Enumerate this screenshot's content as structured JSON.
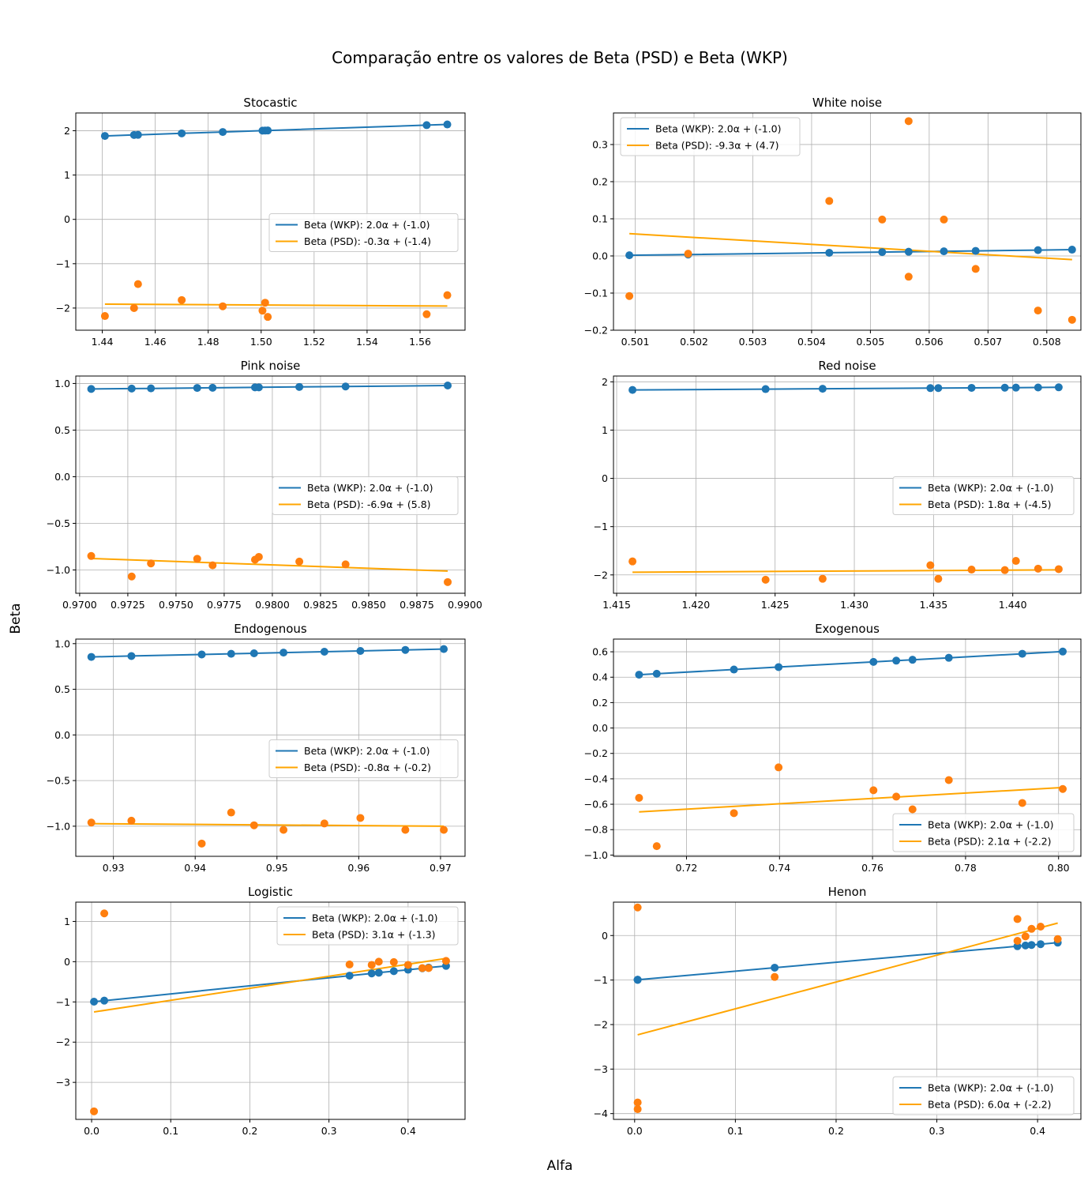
{
  "figure": {
    "title": "Comparação entre os valores de Beta (PSD) e Beta (WKP)",
    "xlabel": "Alfa",
    "ylabel": "Beta",
    "colors": {
      "wkp": "#1f77b4",
      "psd_points": "#ff7f0e",
      "psd_line": "#ffa500",
      "grid": "#b0b0b0"
    }
  },
  "chart_data": [
    {
      "type": "scatter",
      "title": "Stocastic",
      "xlim": [
        1.43,
        1.577
      ],
      "ylim": [
        -2.5,
        2.4
      ],
      "xticks": [
        1.44,
        1.46,
        1.48,
        1.5,
        1.52,
        1.54,
        1.56
      ],
      "xtick_labels": [
        "1.44",
        "1.46",
        "1.48",
        "1.50",
        "1.52",
        "1.54",
        "1.56"
      ],
      "yticks": [
        -2,
        -1,
        0,
        1,
        2
      ],
      "ytick_labels": [
        "−2",
        "−1",
        "0",
        "1",
        "2"
      ],
      "legend": "center-right",
      "legend_entries": [
        "Beta (WKP): 2.0α + (-1.0)",
        "Beta (PSD):  -0.3α + (-1.4)"
      ],
      "x": [
        1.441,
        1.452,
        1.4535,
        1.47,
        1.4855,
        1.5005,
        1.5015,
        1.5025,
        1.5625,
        1.5703
      ],
      "wkp": [
        1.882,
        1.904,
        1.907,
        1.94,
        1.971,
        2.001,
        2.003,
        2.005,
        2.125,
        2.141
      ],
      "psd": [
        -2.18,
        -2.0,
        -1.46,
        -1.82,
        -1.96,
        -2.06,
        -1.88,
        -2.2,
        -2.14,
        -1.71
      ],
      "psd_fit": [
        -0.3,
        -1.4
      ]
    },
    {
      "type": "scatter",
      "title": "White noise",
      "xlim": [
        0.50063,
        0.50858
      ],
      "ylim": [
        -0.2,
        0.385
      ],
      "xticks": [
        0.501,
        0.502,
        0.503,
        0.504,
        0.505,
        0.506,
        0.507,
        0.508
      ],
      "xtick_labels": [
        "0.501",
        "0.502",
        "0.503",
        "0.504",
        "0.505",
        "0.506",
        "0.507",
        "0.508"
      ],
      "yticks": [
        -0.2,
        -0.1,
        0.0,
        0.1,
        0.2,
        0.3
      ],
      "ytick_labels": [
        "−0.2",
        "−0.1",
        "0.0",
        "0.1",
        "0.2",
        "0.3"
      ],
      "legend": "upper-left",
      "legend_entries": [
        "Beta (WKP): 2.0α + (-1.0)",
        "Beta (PSD):  -9.3α + (4.7)"
      ],
      "x": [
        0.5009,
        0.5019,
        0.5043,
        0.5052,
        0.50565,
        0.50625,
        0.50679,
        0.50785,
        0.50843
      ],
      "wkp": [
        0.0018,
        0.0038,
        0.0086,
        0.0104,
        0.0113,
        0.0125,
        0.0136,
        0.0157,
        0.0169
      ],
      "psd": [
        -0.108,
        0.006,
        0.148,
        0.098,
        -0.056,
        0.098,
        -0.035,
        -0.147,
        -0.172
      ],
      "psd_extra": [
        [
          0.50565,
          0.363
        ]
      ],
      "psd_fit": [
        -9.3,
        4.7
      ],
      "psd_fit_line": [
        [
          0.5009,
          0.06
        ],
        [
          0.50843,
          -0.01
        ]
      ]
    },
    {
      "type": "scatter",
      "title": "Pink noise",
      "xlim": [
        0.9698,
        0.99
      ],
      "ylim": [
        -1.25,
        1.08
      ],
      "xticks": [
        0.97,
        0.9725,
        0.975,
        0.9775,
        0.98,
        0.9825,
        0.985,
        0.9875,
        0.99
      ],
      "xtick_labels": [
        "0.9700",
        "0.9725",
        "0.9750",
        "0.9775",
        "0.9800",
        "0.9825",
        "0.9850",
        "0.9875",
        "0.9900"
      ],
      "yticks": [
        -1.0,
        -0.5,
        0.0,
        0.5,
        1.0
      ],
      "ytick_labels": [
        "−1.0",
        "−0.5",
        "0.0",
        "0.5",
        "1.0"
      ],
      "legend": "center-right",
      "legend_entries": [
        "Beta (WKP): 2.0α + (-1.0)",
        "Beta (PSD):  -6.9α + (5.8)"
      ],
      "x": [
        0.9706,
        0.9727,
        0.9737,
        0.9761,
        0.9769,
        0.9791,
        0.9793,
        0.9814,
        0.9838,
        0.9891
      ],
      "wkp": [
        0.9412,
        0.9454,
        0.9474,
        0.9522,
        0.9538,
        0.9582,
        0.9586,
        0.9628,
        0.9676,
        0.9782
      ],
      "psd": [
        -0.85,
        -1.07,
        -0.93,
        -0.88,
        -0.95,
        -0.89,
        -0.86,
        -0.91,
        -0.94,
        -1.13
      ],
      "psd_fit": [
        -6.9,
        5.8
      ],
      "psd_fit_line": [
        [
          0.9706,
          -0.877
        ],
        [
          0.9891,
          -1.012
        ]
      ]
    },
    {
      "type": "scatter",
      "title": "Red noise",
      "xlim": [
        1.4148,
        1.4443
      ],
      "ylim": [
        -2.38,
        2.12
      ],
      "xticks": [
        1.415,
        1.42,
        1.425,
        1.43,
        1.435,
        1.44
      ],
      "xtick_labels": [
        "1.415",
        "1.420",
        "1.425",
        "1.430",
        "1.435",
        "1.440"
      ],
      "yticks": [
        -2,
        -1,
        0,
        1,
        2
      ],
      "ytick_labels": [
        "−2",
        "−1",
        "0",
        "1",
        "2"
      ],
      "legend": "center-right",
      "legend_entries": [
        "Beta (WKP): 2.0α + (-1.0)",
        "Beta (PSD):  1.8α + (-4.5)"
      ],
      "x": [
        1.416,
        1.4244,
        1.428,
        1.4348,
        1.4353,
        1.4374,
        1.4395,
        1.4402,
        1.4416,
        1.4429
      ],
      "wkp": [
        1.832,
        1.849,
        1.856,
        1.87,
        1.871,
        1.875,
        1.879,
        1.88,
        1.883,
        1.886
      ],
      "psd": [
        -1.72,
        -2.1,
        -2.08,
        -1.8,
        -2.08,
        -1.89,
        -1.9,
        -1.71,
        -1.87,
        -1.88
      ],
      "psd_fit": [
        1.8,
        -4.5
      ],
      "psd_fit_line": [
        [
          1.416,
          -1.944
        ],
        [
          1.4429,
          -1.895
        ]
      ]
    },
    {
      "type": "scatter",
      "title": "Endogenous",
      "xlim": [
        0.9254,
        0.973
      ],
      "ylim": [
        -1.33,
        1.05
      ],
      "xticks": [
        0.93,
        0.94,
        0.95,
        0.96,
        0.97
      ],
      "xtick_labels": [
        "0.93",
        "0.94",
        "0.95",
        "0.96",
        "0.97"
      ],
      "yticks": [
        -1.0,
        -0.5,
        0.0,
        0.5,
        1.0
      ],
      "ytick_labels": [
        "−1.0",
        "−0.5",
        "0.0",
        "0.5",
        "1.0"
      ],
      "legend": "center-right",
      "legend_entries": [
        "Beta (WKP): 2.0α + (-1.0)",
        "Beta (PSD):  -0.8α + (-0.2)"
      ],
      "x": [
        0.9273,
        0.9322,
        0.9408,
        0.9444,
        0.9472,
        0.9508,
        0.9558,
        0.9602,
        0.9657,
        0.9704
      ],
      "wkp": [
        0.8546,
        0.8644,
        0.8816,
        0.8888,
        0.8944,
        0.9016,
        0.9116,
        0.9204,
        0.9314,
        0.9408
      ],
      "psd": [
        -0.96,
        -0.94,
        -1.19,
        -0.85,
        -0.99,
        -1.04,
        -0.97,
        -0.91,
        -1.04,
        -1.04
      ],
      "psd_fit": [
        -0.8,
        -0.2
      ],
      "psd_fit_line": [
        [
          0.9273,
          -0.972
        ],
        [
          0.9704,
          -1.0
        ]
      ]
    },
    {
      "type": "scatter",
      "title": "Exogenous",
      "xlim": [
        0.7043,
        0.8048
      ],
      "ylim": [
        -1.01,
        0.7
      ],
      "xticks": [
        0.72,
        0.74,
        0.76,
        0.78,
        0.8
      ],
      "xtick_labels": [
        "0.72",
        "0.74",
        "0.76",
        "0.78",
        "0.80"
      ],
      "yticks": [
        -1.0,
        -0.8,
        -0.6,
        -0.4,
        -0.2,
        0.0,
        0.2,
        0.4,
        0.6
      ],
      "ytick_labels": [
        "−1.0",
        "−0.8",
        "−0.6",
        "−0.4",
        "−0.2",
        "0.0",
        "0.2",
        "0.4",
        "0.6"
      ],
      "legend": "lower-right",
      "legend_entries": [
        "Beta (WKP): 2.0α + (-1.0)",
        "Beta (PSD):  2.1α + (-2.2)"
      ],
      "x": [
        0.7098,
        0.7136,
        0.7302,
        0.7398,
        0.7602,
        0.7651,
        0.7686,
        0.7764,
        0.7922,
        0.8009
      ],
      "wkp": [
        0.4196,
        0.4272,
        0.4604,
        0.4796,
        0.5204,
        0.5302,
        0.5372,
        0.5528,
        0.5844,
        0.6018
      ],
      "psd": [
        -0.55,
        -0.93,
        -0.67,
        -0.31,
        -0.49,
        -0.54,
        -0.64,
        -0.41,
        -0.59,
        -0.48
      ],
      "psd_fit": [
        2.1,
        -2.2
      ],
      "psd_fit_line": [
        [
          0.7098,
          -0.66
        ],
        [
          0.8009,
          -0.468
        ]
      ]
    },
    {
      "type": "scatter",
      "title": "Logistic",
      "xlim": [
        -0.02,
        0.472
      ],
      "ylim": [
        -3.92,
        1.48
      ],
      "xticks": [
        0.0,
        0.1,
        0.2,
        0.3,
        0.4
      ],
      "xtick_labels": [
        "0.0",
        "0.1",
        "0.2",
        "0.3",
        "0.4"
      ],
      "yticks": [
        -3,
        -2,
        -1,
        0,
        1
      ],
      "ytick_labels": [
        "−3",
        "−2",
        "−1",
        "0",
        "1"
      ],
      "legend": "upper-right",
      "legend_entries": [
        "Beta (WKP): 2.0α + (-1.0)",
        "Beta (PSD):  3.1α + (-1.3)"
      ],
      "x": [
        0.003,
        0.016,
        0.326,
        0.354,
        0.363,
        0.382,
        0.4,
        0.418,
        0.426,
        0.448
      ],
      "wkp": [
        -0.994,
        -0.968,
        -0.348,
        -0.292,
        -0.274,
        -0.236,
        -0.2,
        -0.164,
        -0.148,
        -0.104
      ],
      "psd": [
        -3.72,
        1.2,
        -0.07,
        -0.08,
        0.0,
        -0.01,
        -0.08,
        -0.16,
        -0.16,
        0.02
      ],
      "psd_fit": [
        3.1,
        -1.3
      ],
      "psd_fit_line": [
        [
          0.003,
          -1.25
        ],
        [
          0.448,
          0.08
        ]
      ]
    },
    {
      "type": "scatter",
      "title": "Henon",
      "xlim": [
        -0.021,
        0.443
      ],
      "ylim": [
        -4.13,
        0.75
      ],
      "xticks": [
        0.0,
        0.1,
        0.2,
        0.3,
        0.4
      ],
      "xtick_labels": [
        "0.0",
        "0.1",
        "0.2",
        "0.3",
        "0.4"
      ],
      "yticks": [
        -4,
        -3,
        -2,
        -1,
        0
      ],
      "ytick_labels": [
        "−4",
        "−3",
        "−2",
        "−1",
        "0"
      ],
      "legend": "lower-right",
      "legend_entries": [
        "Beta (WKP): 2.0α + (-1.0)",
        "Beta (PSD):  6.0α + (-2.2)"
      ],
      "x": [
        0.003,
        0.003,
        0.003,
        0.139,
        0.38,
        0.388,
        0.394,
        0.403,
        0.42
      ],
      "wkp": [
        -0.994,
        -0.994,
        -0.994,
        -0.722,
        -0.24,
        -0.224,
        -0.212,
        -0.194,
        -0.16
      ],
      "psd": [
        0.63,
        -3.75,
        -3.9,
        -0.93,
        -0.12,
        -0.02,
        0.15,
        0.2,
        -0.08
      ],
      "psd_extra": [
        [
          0.38,
          0.37
        ]
      ],
      "psd_fit": [
        6.0,
        -2.2
      ],
      "psd_fit_line": [
        [
          0.003,
          -2.23
        ],
        [
          0.42,
          0.28
        ]
      ]
    }
  ]
}
